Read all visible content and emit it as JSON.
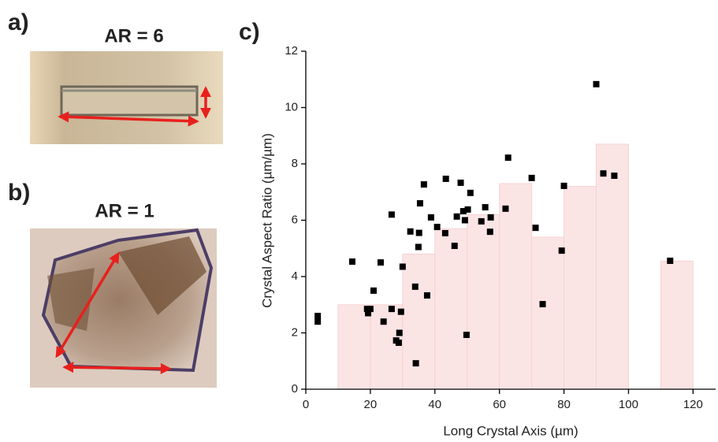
{
  "panels": {
    "a": {
      "label": "a)",
      "title": "AR = 6"
    },
    "b": {
      "label": "b)",
      "title": "AR = 1"
    }
  },
  "chart_data": {
    "type": "scatter",
    "label": "c)",
    "x_label": "Long Crystal Axis (µm)",
    "y_label": "Crystal Aspect Ratio (µm/µm)",
    "xlim": [
      0,
      127
    ],
    "ylim": [
      0,
      12
    ],
    "xticks": [
      0,
      20,
      40,
      60,
      80,
      100,
      120
    ],
    "yticks": [
      0,
      2,
      4,
      6,
      8,
      10,
      12
    ],
    "histogram": {
      "color": "#fbe4e4",
      "bins": [
        10,
        20,
        30,
        40,
        50,
        60,
        70,
        80,
        90,
        100,
        110,
        120
      ],
      "values": [
        3.0,
        3.0,
        4.8,
        5.7,
        6.2,
        7.3,
        5.4,
        7.2,
        8.7,
        0,
        4.55
      ]
    },
    "points": {
      "color": "#000000",
      "x": [
        3.7,
        3.7,
        14.4,
        19.0,
        19.3,
        20.0,
        21.0,
        23.2,
        24.1,
        26.6,
        26.6,
        28.0,
        28.8,
        29.0,
        29.5,
        30.0,
        32.4,
        33.9,
        34.1,
        34.9,
        35.4,
        35.1,
        36.6,
        37.6,
        38.8,
        40.7,
        43.4,
        43.2,
        46.1,
        46.8,
        48.0,
        48.8,
        49.3,
        49.8,
        50.2,
        51.0,
        54.4,
        55.6,
        57.1,
        57.3,
        61.9,
        62.7,
        70.0,
        71.2,
        73.4,
        79.3,
        80.0,
        90.0,
        92.2,
        95.6,
        112.9
      ],
      "y": [
        2.6,
        2.4,
        4.53,
        2.85,
        2.7,
        2.85,
        3.5,
        4.5,
        2.4,
        6.2,
        2.85,
        1.73,
        1.65,
        2.0,
        2.75,
        4.35,
        5.6,
        3.64,
        0.92,
        5.05,
        6.6,
        5.55,
        7.27,
        3.33,
        6.1,
        5.76,
        7.47,
        5.54,
        5.09,
        6.13,
        7.33,
        6.32,
        6.0,
        1.93,
        6.38,
        6.97,
        5.96,
        6.46,
        5.59,
        6.1,
        6.41,
        8.22,
        7.5,
        5.73,
        3.02,
        4.92,
        7.22,
        10.83,
        7.66,
        7.58,
        4.56
      ]
    }
  }
}
